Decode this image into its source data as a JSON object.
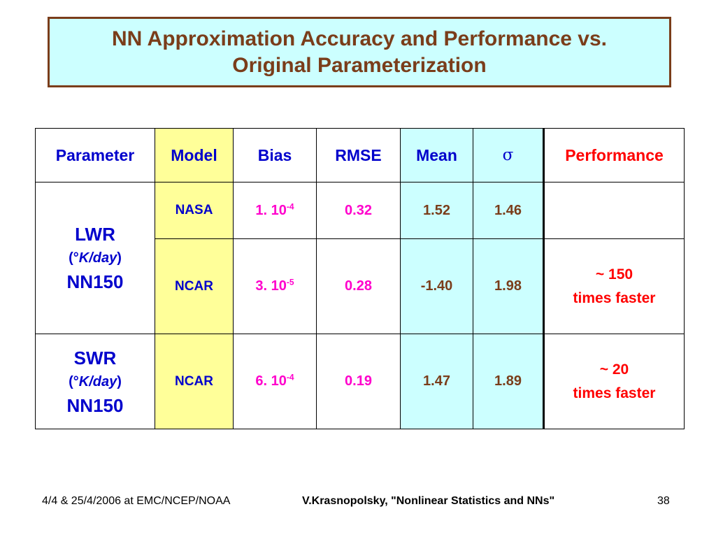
{
  "title": {
    "line1": "NN Approximation Accuracy and Performance vs.",
    "line2": "Original Parameterization"
  },
  "table": {
    "headers": {
      "parameter": "Parameter",
      "model": "Model",
      "bias": "Bias",
      "rmse": "RMSE",
      "mean": "Mean",
      "sigma": "σ",
      "performance": "Performance"
    },
    "groups": [
      {
        "name": "LWR",
        "units_open": "(°",
        "units": "K/day",
        "units_close": ")",
        "nn": "NN150"
      },
      {
        "name": "SWR",
        "units_open": "(°",
        "units": "K/day",
        "units_close": ")",
        "nn": "NN150"
      }
    ],
    "rows": [
      {
        "model": "NASA",
        "bias_base": "1. 10",
        "bias_exp": "-4",
        "rmse": "0.32",
        "mean": "1.52",
        "sigma": "1.46"
      },
      {
        "model": "NCAR",
        "bias_base": "3. 10",
        "bias_exp": "-5",
        "rmse": "0.28",
        "mean": "-1.40",
        "sigma": "1.98"
      },
      {
        "model": "NCAR",
        "bias_base": "6. 10",
        "bias_exp": "-4",
        "rmse": "0.19",
        "mean": "1.47",
        "sigma": "1.89"
      }
    ],
    "performance": [
      {
        "value": "~ 150",
        "text": "times faster"
      },
      {
        "value": "~ 20",
        "text": "times faster"
      }
    ]
  },
  "footer": {
    "left": "4/4 & 25/4/2006 at EMC/NCEP/NOAA",
    "center": "V.Krasnopolsky, \"Nonlinear Statistics and NNs\"",
    "page": "38"
  },
  "colors": {
    "title_text": "#7a3d1a",
    "title_bg": "#ccffff",
    "model_bg": "#ffff99",
    "stat_bg": "#ccffff",
    "header_blue": "#0000cc",
    "performance_red": "#ff0000",
    "bias_magenta": "#ff00cc"
  }
}
